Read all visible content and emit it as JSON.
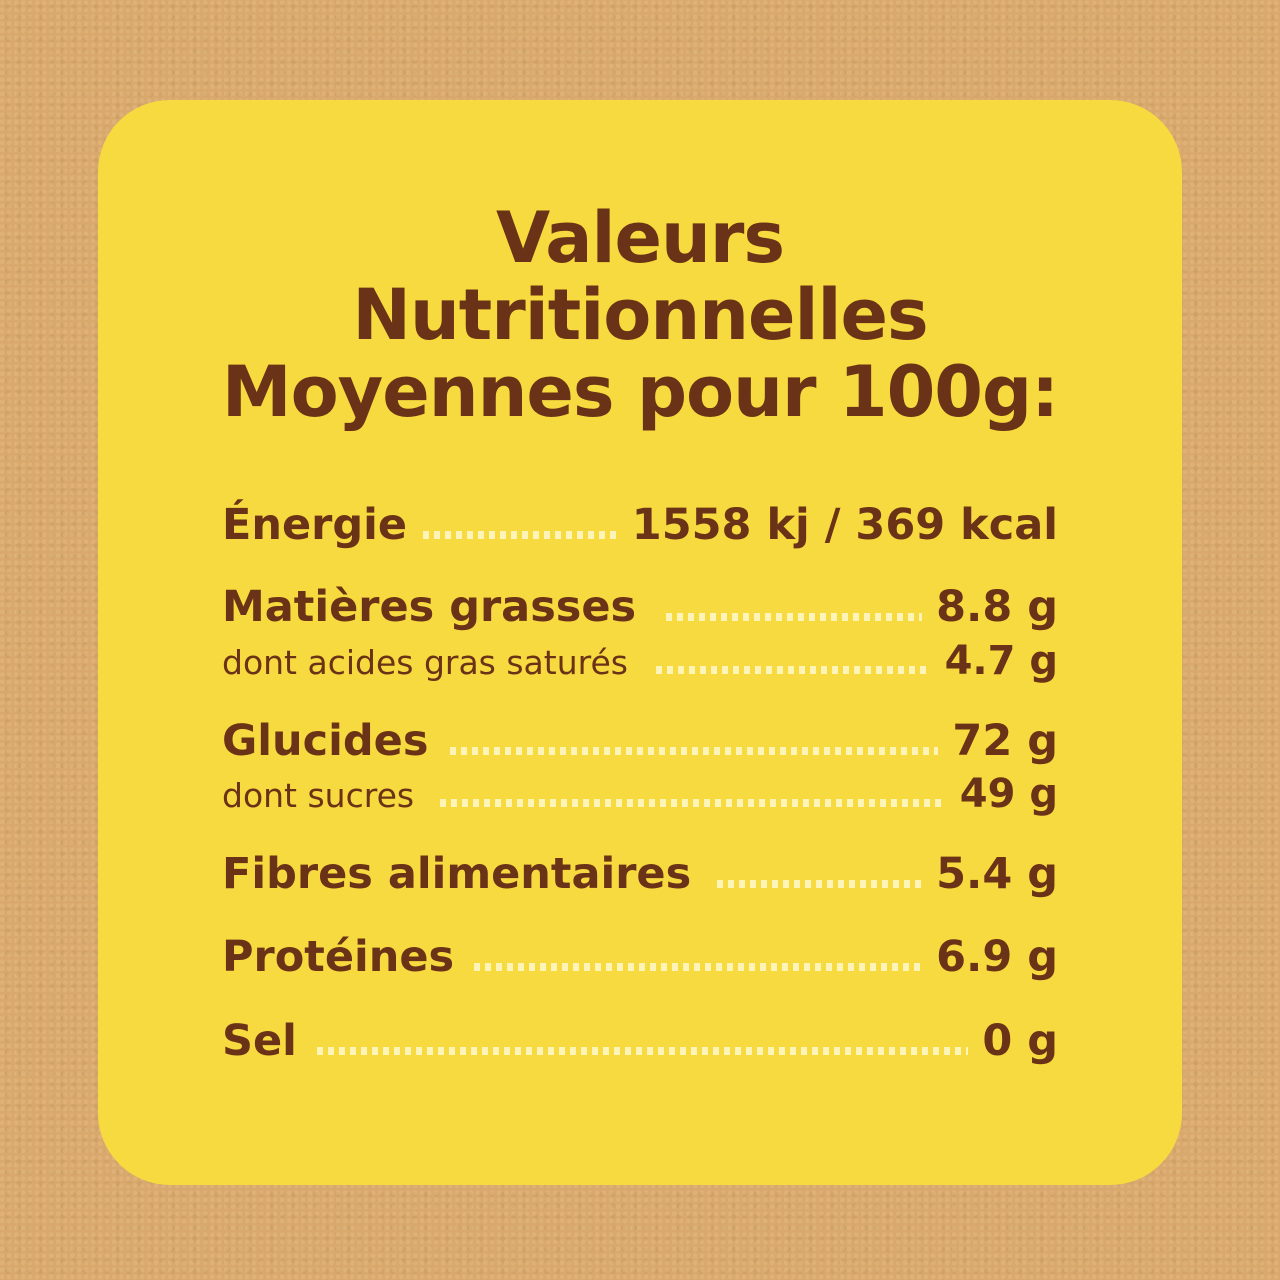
{
  "title": [
    "Valeurs",
    "Nutritionnelles",
    "Moyennes pour 100g:"
  ],
  "rows": [
    {
      "label": "Énergie",
      "value": "1558 kj / 369 kcal"
    },
    {
      "label": "Matières grasses",
      "value": "8.8 g"
    },
    {
      "label": "dont acides gras saturés",
      "value": "4.7 g"
    },
    {
      "label": "Glucides",
      "value": "72 g"
    },
    {
      "label": "dont sucres",
      "value": "49 g"
    },
    {
      "label": "Fibres alimentaires",
      "value": "5.4 g"
    },
    {
      "label": "Protéines",
      "value": "6.9 g"
    },
    {
      "label": "Sel",
      "value": "0 g"
    }
  ],
  "colors": {
    "background": "#d8a86c",
    "card": "#f7da3f",
    "text": "#6a3216",
    "dots": "#fff4b8"
  }
}
